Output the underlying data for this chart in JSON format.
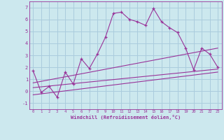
{
  "xlabel": "Windchill (Refroidissement éolien,°C)",
  "background_color": "#cce8ee",
  "grid_color": "#aaccdd",
  "line_color": "#993399",
  "xlim": [
    -0.5,
    23.5
  ],
  "ylim": [
    -1.5,
    7.5
  ],
  "xticks": [
    0,
    1,
    2,
    3,
    4,
    5,
    6,
    7,
    8,
    9,
    10,
    11,
    12,
    13,
    14,
    15,
    16,
    17,
    18,
    19,
    20,
    21,
    22,
    23
  ],
  "yticks": [
    -1,
    0,
    1,
    2,
    3,
    4,
    5,
    6,
    7
  ],
  "main_x": [
    0,
    1,
    2,
    3,
    4,
    5,
    6,
    7,
    8,
    9,
    10,
    11,
    12,
    13,
    14,
    15,
    16,
    17,
    18,
    19,
    20,
    21,
    22,
    23
  ],
  "main_y": [
    1.7,
    -0.1,
    0.4,
    -0.5,
    1.6,
    0.6,
    2.7,
    1.9,
    3.1,
    4.5,
    6.5,
    6.6,
    6.0,
    5.8,
    5.5,
    6.9,
    5.8,
    5.3,
    4.9,
    3.6,
    1.8,
    3.6,
    3.1,
    2.0
  ],
  "line1_x": [
    0,
    23
  ],
  "line1_y": [
    0.7,
    3.6
  ],
  "line2_x": [
    0,
    23
  ],
  "line2_y": [
    0.3,
    1.85
  ],
  "line3_x": [
    0,
    23
  ],
  "line3_y": [
    -0.3,
    1.6
  ]
}
